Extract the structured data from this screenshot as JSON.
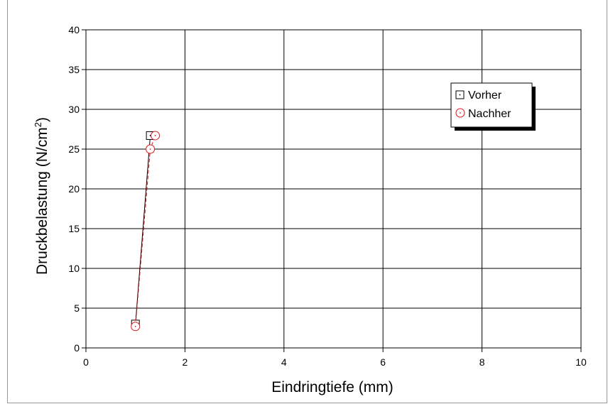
{
  "chart_data": {
    "type": "line",
    "xlabel": "Eindringtiefe (mm)",
    "ylabel_main": "Druckbelastung (N/cm",
    "ylabel_sup": "2",
    "ylabel_end": ")",
    "xlim": [
      0,
      10
    ],
    "ylim": [
      0,
      40
    ],
    "xticks": [
      0,
      2,
      4,
      6,
      8,
      10
    ],
    "yticks": [
      0,
      5,
      10,
      15,
      20,
      25,
      30,
      35,
      40
    ],
    "grid": true,
    "legend_position": "top-right",
    "series": [
      {
        "name": "Vorher",
        "marker": "square",
        "color": "#000000",
        "line": "solid",
        "points": [
          {
            "x": 1.0,
            "y": 3.0
          },
          {
            "x": 1.3,
            "y": 26.7
          }
        ]
      },
      {
        "name": "Nachher",
        "marker": "circle",
        "color": "#e8141c",
        "line": "dashed",
        "points": [
          {
            "x": 1.0,
            "y": 2.7
          },
          {
            "x": 1.3,
            "y": 25.0
          },
          {
            "x": 1.4,
            "y": 26.7
          }
        ]
      }
    ]
  }
}
